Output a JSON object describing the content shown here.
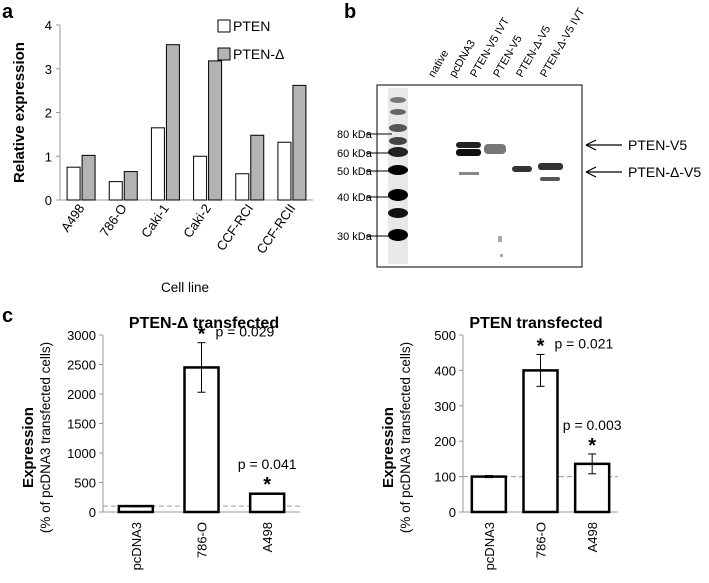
{
  "panels": {
    "a": "a",
    "b": "b",
    "c": "c"
  },
  "colors": {
    "bar_fill_white": "#ffffff",
    "bar_fill_grey": "#b3b3b3",
    "axis": "#999999",
    "bar_stroke": "#000000",
    "reference_line": "#999999"
  },
  "chart_data": [
    {
      "id": "a",
      "type": "bar",
      "title": "",
      "xlabel": "Cell line",
      "ylabel": "Relative expression",
      "categories": [
        "A498",
        "786-O",
        "Caki-1",
        "Caki-2",
        "CCF-RCI",
        "CCF-RCII"
      ],
      "series": [
        {
          "name": "PTEN",
          "values": [
            0.75,
            0.42,
            1.65,
            1.0,
            0.6,
            1.32
          ]
        },
        {
          "name": "PTEN-Δ",
          "values": [
            1.02,
            0.65,
            3.55,
            3.18,
            1.48,
            2.62
          ]
        }
      ],
      "ylim": [
        0,
        4
      ],
      "yticks": [
        "0",
        "1",
        "2",
        "3",
        "4"
      ],
      "legend": "top-right"
    },
    {
      "id": "c1",
      "type": "bar",
      "title": "PTEN-Δ transfected",
      "xlabel": "",
      "ylabel": "Expression",
      "ylabel_sub": "(% of pcDNA3 transfected cells)",
      "categories": [
        "pcDNA3",
        "786-O",
        "A498"
      ],
      "values": [
        100,
        2450,
        310
      ],
      "errors": [
        10,
        420,
        10
      ],
      "significance": [
        "",
        "*",
        "*"
      ],
      "pvalues": [
        "",
        "p = 0.029",
        "p = 0.041"
      ],
      "reference_line": 100,
      "ylim": [
        0,
        3000
      ],
      "yticks": [
        "0",
        "500",
        "1000",
        "1500",
        "2000",
        "2500",
        "3000"
      ]
    },
    {
      "id": "c2",
      "type": "bar",
      "title": "PTEN transfected",
      "xlabel": "",
      "ylabel": "Expression",
      "ylabel_sub": "(% of pcDNA3 transfected cells)",
      "categories": [
        "pcDNA3",
        "786-O",
        "A498"
      ],
      "values": [
        100,
        400,
        136
      ],
      "errors": [
        3,
        45,
        28
      ],
      "significance": [
        "",
        "*",
        "*"
      ],
      "pvalues": [
        "",
        "p = 0.021",
        "p = 0.003"
      ],
      "reference_line": 100,
      "ylim": [
        0,
        500
      ],
      "yticks": [
        "0",
        "100",
        "200",
        "300",
        "400",
        "500"
      ]
    }
  ],
  "blot": {
    "lanes": [
      "native",
      "pcDNA3",
      "PTEN-V5 IVT",
      "PTEN-V5",
      "PTEN-Δ-V5",
      "PTEN-Δ-V5 IVT"
    ],
    "markers": [
      "80 kDa",
      "60 kDa",
      "50 kDa",
      "40 kDa",
      "30 kDa"
    ],
    "band_labels": [
      "PTEN-V5",
      "PTEN-Δ-V5"
    ]
  }
}
